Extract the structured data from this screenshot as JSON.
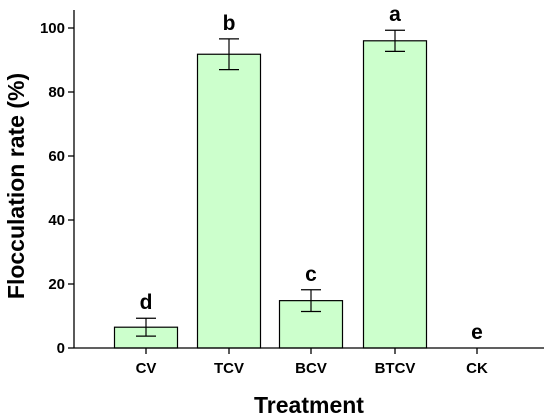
{
  "chart_data": {
    "type": "bar",
    "title": "",
    "xlabel": "Treatment",
    "ylabel": "Flocculation rate (%)",
    "categories": [
      "CV",
      "TCV",
      "BCV",
      "BTCV",
      "CK"
    ],
    "values": [
      6.5,
      91.8,
      14.8,
      96.0,
      0
    ],
    "error": [
      2.8,
      4.8,
      3.4,
      3.3,
      0
    ],
    "significance": [
      "d",
      "b",
      "c",
      "a",
      "e"
    ],
    "ylim": [
      0,
      105
    ],
    "yticks": [
      "0",
      "20",
      "40",
      "60",
      "80",
      "100"
    ],
    "grid": false,
    "bar_color": "#ccffcc",
    "bar_edge_color": "#000000"
  }
}
